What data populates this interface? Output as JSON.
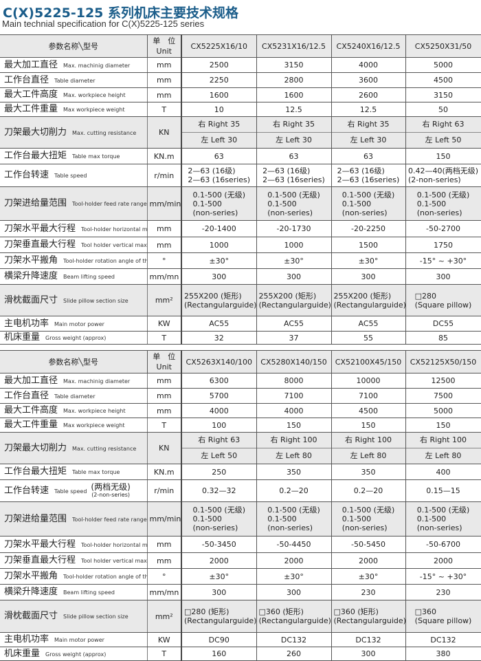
{
  "title": "C(X)5225-125 系列机床主要技术规格",
  "subtitle": "Main technial specification for C(X)5225-125 series",
  "tables": [
    {
      "header": {
        "param": "参数名称╲型号",
        "unit_cn": "单　位",
        "unit_en": "Unit",
        "models": [
          "CX5225X16/10",
          "CX5231X16/12.5",
          "CX5240X16/12.5",
          "CX5250X31/50"
        ]
      },
      "rows": [
        {
          "cn": "最大加工直径",
          "en": "Max. machinig diameter",
          "unit": "mm",
          "values": [
            "2500",
            "3150",
            "4000",
            "5000"
          ]
        },
        {
          "cn": "工作台直径",
          "en": "Table  diameter",
          "unit": "mm",
          "values": [
            "2250",
            "2800",
            "3600",
            "4500"
          ]
        },
        {
          "cn": "最大工件高度",
          "en": "Max. workpiece height",
          "unit": "mm",
          "values": [
            "1600",
            "1600",
            "2600",
            "3150"
          ]
        },
        {
          "cn": "最大工件重量",
          "en": "Max workpiece weight",
          "unit": "T",
          "values": [
            "10",
            "12.5",
            "12.5",
            "50"
          ]
        },
        {
          "cn": "刀架最大切削力",
          "en": "Max. cutting resistance",
          "unit": "KN",
          "gray": true,
          "split": true,
          "values": [
            [
              "右  Right  35",
              "左  Left  30"
            ],
            [
              "右  Right  35",
              "左  Left  30"
            ],
            [
              "右  Right  35",
              "左  Left  30"
            ],
            [
              "右 Right  63",
              "左  Left  50"
            ]
          ]
        },
        {
          "cn": "工作台最大扭矩",
          "en": "Table max torque",
          "unit": "KN.m",
          "values": [
            "63",
            "63",
            "63",
            "150"
          ]
        },
        {
          "cn": "工作台转速",
          "en": "Table  speed",
          "unit": "r/min",
          "values": [
            "2—63 (16级)\n2—63 (16series)",
            "2—63 (16级)\n2—63 (16series)",
            "2—63 (16级)\n2—63 (16series)",
            "0.42—40(两档无级)\n(2-non-series)"
          ]
        },
        {
          "cn": "刀架进给量范围",
          "en": "Tool-holder feed rate range",
          "unit": "mm/min",
          "gray": true,
          "values": [
            "0.1-500 (无级)\n0.1-500\n(non-series)",
            "0.1-500 (无级)\n0.1-500\n(non-series)",
            "0.1-500 (无级)\n0.1-500\n(non-series)",
            "0.1-500 (无级)\n0.1-500\n(non-series)"
          ]
        },
        {
          "cn": "刀架水平最大行程",
          "en": "Tool-holder horizontal max stroke",
          "unit": "mm",
          "values": [
            "-20-1400",
            "-20-1730",
            "-20-2250",
            "-50-2700"
          ]
        },
        {
          "cn": "刀架垂直最大行程",
          "en": "Tool holder vertical max stroke",
          "unit": "mm",
          "values": [
            "1000",
            "1000",
            "1500",
            "1750"
          ]
        },
        {
          "cn": "刀架水平搬角",
          "en": "Tool-holder rotation angle of the level of",
          "unit": "°",
          "values": [
            "±30°",
            "±30°",
            "±30°",
            "-15° ~ +30°"
          ]
        },
        {
          "cn": "横梁升降速度",
          "en": "Beam lifting speed",
          "unit": "mm/mn",
          "values": [
            "300",
            "300",
            "300",
            "300"
          ]
        },
        {
          "cn": "滑枕截面尺寸",
          "en": "Slide pillow section size",
          "unit": "mm²",
          "gray": true,
          "values": [
            "255X200 (矩形)\n(Rectangularguide)",
            "255X200 (矩形)\n(Rectangularguide)",
            "255X200 (矩形)\n(Rectangularguide)",
            "□280\n(Square pillow)"
          ]
        },
        {
          "cn": "主电机功率",
          "en": "Main motor power",
          "unit": "KW",
          "values": [
            "AC55",
            "AC55",
            "AC55",
            "DC55"
          ]
        },
        {
          "cn": "机床重量",
          "en": "Gross weight (approx)",
          "unit": "T",
          "values": [
            "32",
            "37",
            "55",
            "85"
          ]
        }
      ]
    },
    {
      "header": {
        "param": "参数名称╲型号",
        "unit_cn": "单　位",
        "unit_en": "Unit",
        "models": [
          "CX5263X140/100",
          "CX5280X140/150",
          "CX52100X45/150",
          "CX52125X50/150"
        ]
      },
      "rows": [
        {
          "cn": "最大加工直径",
          "en": "Max. machinig diameter",
          "unit": "mm",
          "values": [
            "6300",
            "8000",
            "10000",
            "12500"
          ]
        },
        {
          "cn": "工作台直径",
          "en": "Table  diameter",
          "unit": "mm",
          "values": [
            "5700",
            "7100",
            "7100",
            "7500"
          ]
        },
        {
          "cn": "最大工件高度",
          "en": "Max. workpiece height",
          "unit": "mm",
          "values": [
            "4000",
            "4000",
            "4500",
            "5000"
          ]
        },
        {
          "cn": "最大工件重量",
          "en": "Max workpiece weight",
          "unit": "T",
          "values": [
            "100",
            "150",
            "150",
            "150"
          ]
        },
        {
          "cn": "刀架最大切削力",
          "en": "Max. cutting resistance",
          "unit": "KN",
          "gray": true,
          "split": true,
          "values": [
            [
              "右  Right  63",
              "左  Left  50"
            ],
            [
              "右  Right  100",
              "左  Left  80"
            ],
            [
              "右  Right  100",
              "左  Left  80"
            ],
            [
              "右 Right 100",
              "左  Left 80"
            ]
          ]
        },
        {
          "cn": "工作台最大扭矩",
          "en": "Table max torque",
          "unit": "KN.m",
          "values": [
            "250",
            "350",
            "350",
            "400"
          ]
        },
        {
          "cn": "工作台转速",
          "en": "Table  speed",
          "note_cn": "(两档无级)",
          "note_en": "(2-non-series)",
          "unit": "r/min",
          "values": [
            "0.32—32",
            "0.2—20",
            "0.2—20",
            "0.15—15"
          ]
        },
        {
          "cn": "刀架进给量范围",
          "en": "Tool-holder feed rate range",
          "unit": "mm/min",
          "gray": true,
          "values": [
            "0.1-500 (无级)\n0.1-500\n(non-series)",
            "0.1-500 (无级)\n0.1-500\n(non-series)",
            "0.1-500 (无级)\n0.1-500\n(non-series)",
            "0.1-500 (无级)\n0.1-500\n(non-series)"
          ]
        },
        {
          "cn": "刀架水平最大行程",
          "en": "Tool-holder horizontal max stroke",
          "unit": "mm",
          "values": [
            "-50-3450",
            "-50-4450",
            "-50-5450",
            "-50-6700"
          ]
        },
        {
          "cn": "刀架垂直最大行程",
          "en": "Tool holder vertical max stroke",
          "unit": "mm",
          "values": [
            "2000",
            "2000",
            "2000",
            "2000"
          ]
        },
        {
          "cn": "刀架水平搬角",
          "en": "Tool-holder rotation angle of the level of",
          "unit": "°",
          "values": [
            "±30°",
            "±30°",
            "±30°",
            "-15° ~ +30°"
          ]
        },
        {
          "cn": "横梁升降速度",
          "en": "Beam lifting speed",
          "unit": "mm/mn",
          "values": [
            "300",
            "300",
            "230",
            "230"
          ]
        },
        {
          "cn": "滑枕截面尺寸",
          "en": "Slide pillow section size",
          "unit": "mm²",
          "gray": true,
          "values": [
            "□280 (矩形)\n(Rectangularguide)",
            "□360 (矩形)\n(Rectangularguide)",
            "□360 (矩形)\n(Rectangularguide)",
            "□360\n(Square pillow)"
          ]
        },
        {
          "cn": "主电机功率",
          "en": "Main motor power",
          "unit": "KW",
          "values": [
            "DC90",
            "DC132",
            "DC132",
            "DC132"
          ]
        },
        {
          "cn": "机床重量",
          "en": "Gross weight (approx)",
          "unit": "T",
          "values": [
            "160",
            "260",
            "300",
            "380"
          ]
        }
      ]
    }
  ]
}
